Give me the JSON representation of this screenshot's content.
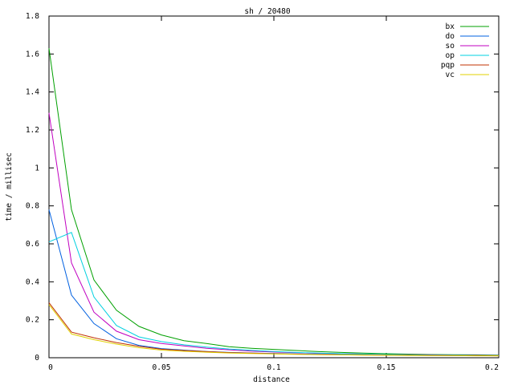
{
  "chart_data": {
    "type": "line",
    "title": "sh / 20480",
    "xlabel": "distance",
    "ylabel": "time / millisec",
    "xlim": [
      0,
      0.2
    ],
    "ylim": [
      0,
      1.8
    ],
    "xticks": [
      0,
      0.05,
      0.1,
      0.15,
      0.2
    ],
    "xtick_labels": [
      "0",
      "0.05",
      "0.1",
      "0.15",
      "0.2"
    ],
    "yticks": [
      0,
      0.2,
      0.4,
      0.6,
      0.8,
      1,
      1.2,
      1.4,
      1.6,
      1.8
    ],
    "ytick_labels": [
      "0",
      "0.2",
      "0.4",
      "0.6",
      "0.8",
      "1",
      "1.2",
      "1.4",
      "1.6",
      "1.8"
    ],
    "grid": false,
    "legend_position": "top-right",
    "x": [
      0,
      0.01,
      0.02,
      0.03,
      0.04,
      0.05,
      0.06,
      0.07,
      0.08,
      0.09,
      0.1,
      0.11,
      0.12,
      0.13,
      0.14,
      0.15,
      0.16,
      0.17,
      0.18,
      0.19,
      0.2
    ],
    "series": [
      {
        "name": "bx",
        "color": "#00a000",
        "values": [
          1.63,
          0.78,
          0.41,
          0.25,
          0.165,
          0.12,
          0.09,
          0.075,
          0.058,
          0.05,
          0.044,
          0.038,
          0.032,
          0.028,
          0.024,
          0.021,
          0.019,
          0.017,
          0.016,
          0.015,
          0.014
        ]
      },
      {
        "name": "do",
        "color": "#0060e0",
        "values": [
          0.78,
          0.33,
          0.18,
          0.1,
          0.065,
          0.048,
          0.04,
          0.033,
          0.028,
          0.025,
          0.022,
          0.02,
          0.018,
          0.017,
          0.016,
          0.015,
          0.014,
          0.013,
          0.012,
          0.012,
          0.011
        ]
      },
      {
        "name": "so",
        "color": "#c000c0",
        "values": [
          1.29,
          0.5,
          0.24,
          0.14,
          0.095,
          0.075,
          0.062,
          0.05,
          0.042,
          0.035,
          0.03,
          0.026,
          0.023,
          0.021,
          0.019,
          0.017,
          0.016,
          0.015,
          0.014,
          0.013,
          0.012
        ]
      },
      {
        "name": "op",
        "color": "#00d0e0",
        "values": [
          0.61,
          0.66,
          0.32,
          0.17,
          0.11,
          0.085,
          0.068,
          0.056,
          0.046,
          0.039,
          0.033,
          0.028,
          0.024,
          0.021,
          0.019,
          0.017,
          0.015,
          0.014,
          0.013,
          0.012,
          0.011
        ]
      },
      {
        "name": "pqp",
        "color": "#c03000",
        "values": [
          0.29,
          0.135,
          0.105,
          0.08,
          0.06,
          0.045,
          0.038,
          0.032,
          0.027,
          0.024,
          0.021,
          0.019,
          0.017,
          0.016,
          0.015,
          0.014,
          0.013,
          0.012,
          0.011,
          0.011,
          0.01
        ]
      },
      {
        "name": "vc",
        "color": "#e0d000",
        "values": [
          0.28,
          0.125,
          0.095,
          0.072,
          0.053,
          0.04,
          0.034,
          0.029,
          0.025,
          0.022,
          0.02,
          0.018,
          0.016,
          0.015,
          0.014,
          0.013,
          0.012,
          0.011,
          0.011,
          0.01,
          0.01
        ]
      }
    ]
  }
}
